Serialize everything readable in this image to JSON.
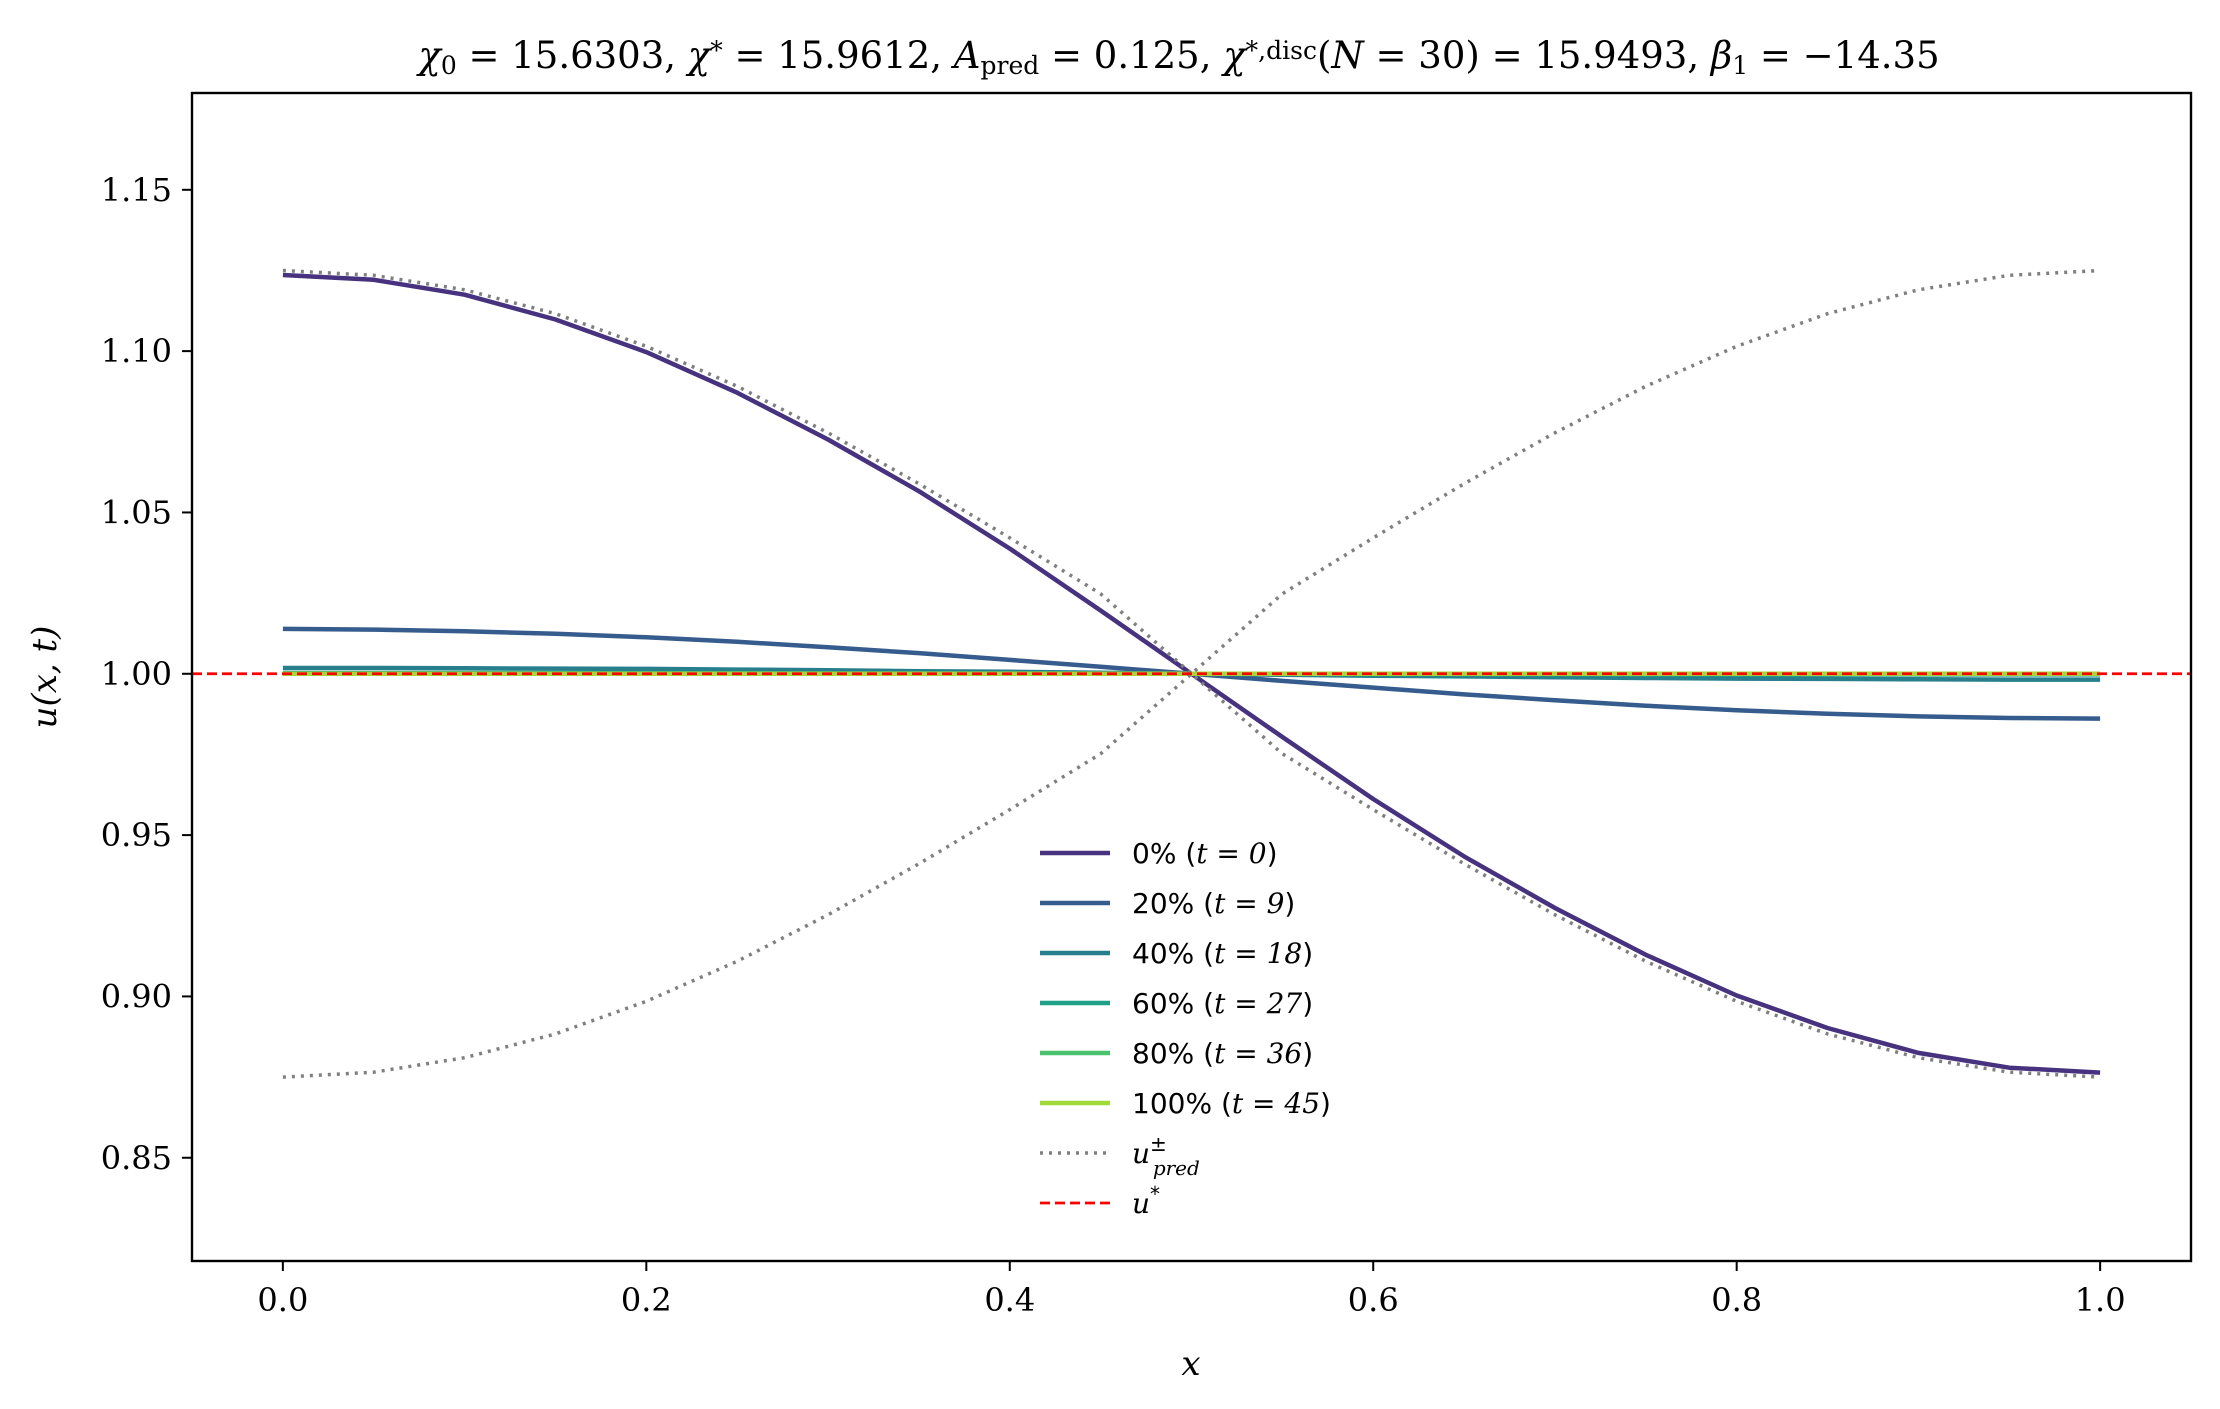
{
  "chart_data": {
    "type": "line",
    "title": "χ₀ = 15.6303,  χ* = 15.9612,  A_pred = 0.125,  χ*,disc(N = 30) = 15.9493,  β₁ = −14.35",
    "title_parts": [
      {
        "t": "χ",
        "i": true
      },
      {
        "t": "0",
        "sub": true
      },
      {
        "t": " = 15.6303,  "
      },
      {
        "t": "χ",
        "i": true
      },
      {
        "t": "*",
        "sup": true
      },
      {
        "t": " = 15.9612,  "
      },
      {
        "t": "A",
        "i": true
      },
      {
        "t": "pred",
        "sub": true
      },
      {
        "t": " = 0.125,  "
      },
      {
        "t": "χ",
        "i": true
      },
      {
        "t": "*,disc",
        "sup": true
      },
      {
        "t": "("
      },
      {
        "t": "N",
        "i": true
      },
      {
        "t": " = 30) = 15.9493,  "
      },
      {
        "t": "β",
        "i": true
      },
      {
        "t": "1",
        "sub": true
      },
      {
        "t": " = −14.35"
      }
    ],
    "xlabel": "x",
    "ylabel": "u(x, t)",
    "xlim": [
      -0.05,
      1.05
    ],
    "ylim": [
      0.818,
      1.18
    ],
    "xticks": [
      0.0,
      0.2,
      0.4,
      0.6,
      0.8,
      1.0
    ],
    "xtick_labels": [
      "0.0",
      "0.2",
      "0.4",
      "0.6",
      "0.8",
      "1.0"
    ],
    "yticks": [
      0.85,
      0.9,
      0.95,
      1.0,
      1.05,
      1.1,
      1.15
    ],
    "ytick_labels": [
      "0.85",
      "0.90",
      "0.95",
      "1.00",
      "1.05",
      "1.10",
      "1.15"
    ],
    "grid": false,
    "legend_position": "lower-center",
    "x": [
      0.0,
      0.05,
      0.1,
      0.15,
      0.2,
      0.25,
      0.3,
      0.35,
      0.4,
      0.45,
      0.5,
      0.55,
      0.6,
      0.65,
      0.7,
      0.75,
      0.8,
      0.85,
      0.9,
      0.95,
      1.0
    ],
    "series": [
      {
        "name": "0% (t = 0)",
        "label_pct": "0%",
        "label_t": "t = 0",
        "color": "#46327e",
        "style": "solid",
        "values": [
          1.1236,
          1.1221,
          1.1175,
          1.1098,
          1.0997,
          1.0871,
          1.0726,
          1.0566,
          1.0388,
          1.0196,
          1.0,
          0.9804,
          0.9612,
          0.9434,
          0.9274,
          0.9129,
          0.9003,
          0.8902,
          0.8825,
          0.8779,
          0.8764
        ]
      },
      {
        "name": "20% (t = 9)",
        "label_pct": "20%",
        "label_t": "t = 9",
        "color": "#365c8d",
        "style": "solid",
        "values": [
          1.0139,
          1.0137,
          1.0132,
          1.0124,
          1.0113,
          1.0099,
          1.0082,
          1.0064,
          1.0043,
          1.0022,
          1.0,
          0.9978,
          0.9957,
          0.9936,
          0.9918,
          0.9901,
          0.9887,
          0.9876,
          0.9868,
          0.9863,
          0.9861
        ]
      },
      {
        "name": "40% (t = 18)",
        "label_pct": "40%",
        "label_t": "t = 18",
        "color": "#277f8e",
        "style": "solid",
        "values": [
          1.0018,
          1.0018,
          1.0017,
          1.0016,
          1.0015,
          1.0013,
          1.0011,
          1.0008,
          1.0006,
          1.0003,
          1.0,
          0.9997,
          0.9994,
          0.9992,
          0.9989,
          0.9987,
          0.9985,
          0.9984,
          0.9983,
          0.9982,
          0.9982
        ]
      },
      {
        "name": "60% (t = 27)",
        "label_pct": "60%",
        "label_t": "t = 27",
        "color": "#1fa187",
        "style": "solid",
        "values": [
          1.0002,
          1.0002,
          1.0002,
          1.0002,
          1.0002,
          1.0002,
          1.0001,
          1.0001,
          1.0001,
          1.0,
          1.0,
          1.0,
          0.9999,
          0.9999,
          0.9999,
          0.9998,
          0.9998,
          0.9998,
          0.9998,
          0.9998,
          0.9998
        ]
      },
      {
        "name": "80% (t = 36)",
        "label_pct": "80%",
        "label_t": "t = 36",
        "color": "#4ac16d",
        "style": "solid",
        "values": [
          1.0,
          1.0,
          1.0,
          1.0,
          1.0,
          1.0,
          1.0,
          1.0,
          1.0,
          1.0,
          1.0,
          1.0,
          1.0,
          1.0,
          1.0,
          1.0,
          1.0,
          1.0,
          1.0,
          1.0,
          1.0
        ]
      },
      {
        "name": "100% (t = 45)",
        "label_pct": "100%",
        "label_t": "t = 45",
        "color": "#a0da39",
        "style": "solid",
        "values": [
          1.0,
          1.0,
          1.0,
          1.0,
          1.0,
          1.0,
          1.0,
          1.0,
          1.0,
          1.0,
          1.0,
          1.0,
          1.0,
          1.0,
          1.0,
          1.0,
          1.0,
          1.0,
          1.0,
          1.0,
          1.0
        ]
      },
      {
        "name": "u±pred (+)",
        "label_math": "u",
        "label_sup": "±",
        "label_sub": "pred",
        "color": "#7f7f7f",
        "style": "dotted",
        "values": [
          0.875,
          0.8765,
          0.881,
          0.8884,
          0.8985,
          0.9109,
          0.9253,
          0.9411,
          0.9579,
          0.9752,
          1.0,
          1.0248,
          1.0421,
          1.0589,
          1.0747,
          1.0891,
          1.1015,
          1.1116,
          1.119,
          1.1235,
          1.125
        ]
      },
      {
        "name": "u±pred (−)",
        "color": "#7f7f7f",
        "style": "dotted",
        "legend": false,
        "values": [
          1.125,
          1.1235,
          1.119,
          1.1116,
          1.1015,
          1.0891,
          1.0747,
          1.0589,
          1.0421,
          1.0248,
          1.0,
          0.9752,
          0.9579,
          0.9411,
          0.9253,
          0.9109,
          0.8985,
          0.8884,
          0.881,
          0.8765,
          0.875
        ]
      },
      {
        "name": "u*",
        "label_math": "u",
        "label_sup": "*",
        "color": "#ff0000",
        "style": "dashed",
        "hline": 1.0
      }
    ]
  }
}
